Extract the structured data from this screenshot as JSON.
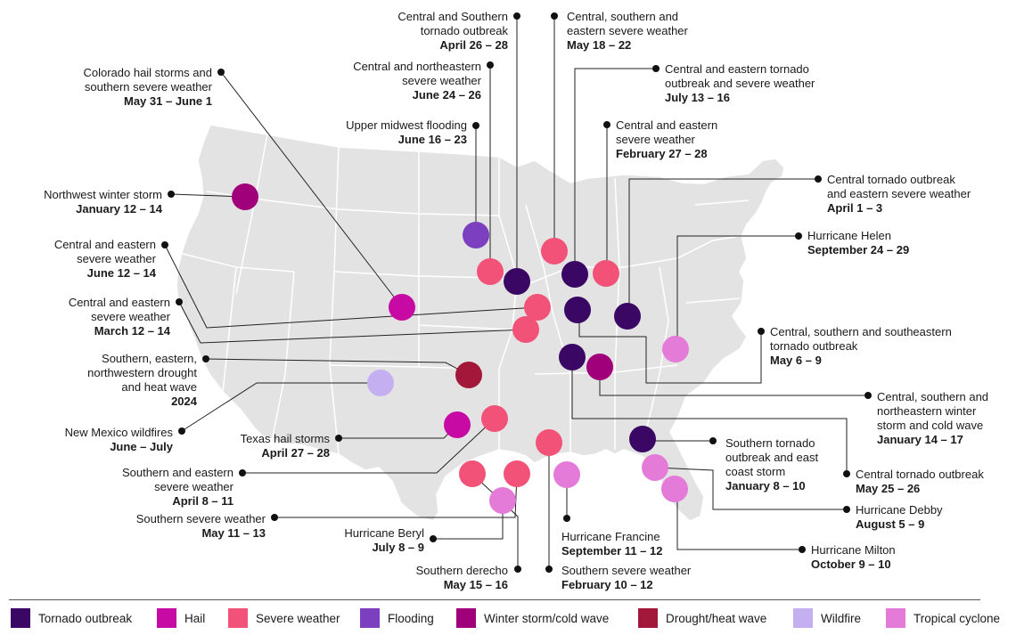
{
  "categories": {
    "tornado": {
      "label": "Tornado outbreak",
      "color": "#3b0764"
    },
    "hail": {
      "label": "Hail",
      "color": "#c80aa5"
    },
    "severe": {
      "label": "Severe weather",
      "color": "#f25278"
    },
    "flooding": {
      "label": "Flooding",
      "color": "#7b3fbf"
    },
    "winter": {
      "label": "Winter storm/cold wave",
      "color": "#a0007a"
    },
    "drought": {
      "label": "Drought/heat wave",
      "color": "#a3183a"
    },
    "wildfire": {
      "label": "Wildfire",
      "color": "#c4b0f0"
    },
    "tropical": {
      "label": "Tropical cyclone",
      "color": "#e57bd8"
    }
  },
  "legend": [
    "tornado",
    "hail",
    "severe",
    "flooding",
    "winter",
    "drought",
    "wildfire",
    "tropical"
  ],
  "events": [
    {
      "name": "Central and Southern\ntornado outbreak",
      "date": "April 26 – 28",
      "category": "tornado"
    },
    {
      "name": "Central, southern and\neastern severe weather",
      "date": "May 18 – 22",
      "category": "severe"
    },
    {
      "name": "Colorado hail storms and\nsouthern severe weather",
      "date": "May 31 – June 1",
      "category": "hail"
    },
    {
      "name": "Central and northeastern\nsevere weather",
      "date": "June 24 – 26",
      "category": "severe"
    },
    {
      "name": "Central and eastern tornado\noutbreak and severe weather",
      "date": "July 13 – 16",
      "category": "tornado"
    },
    {
      "name": "Upper midwest flooding",
      "date": "June 16 – 23",
      "category": "flooding"
    },
    {
      "name": "Central and eastern\nsevere weather",
      "date": "February 27 – 28",
      "category": "severe"
    },
    {
      "name": "Northwest winter storm",
      "date": "January 12 – 14",
      "category": "winter"
    },
    {
      "name": "Central tornado outbreak\nand eastern severe weather",
      "date": "April 1 – 3",
      "category": "tornado"
    },
    {
      "name": "Central and eastern\nsevere weather",
      "date": "June 12 – 14",
      "category": "severe"
    },
    {
      "name": "Hurricane Helen",
      "date": "September 24 – 29",
      "category": "tropical"
    },
    {
      "name": "Central and eastern\nsevere weather",
      "date": "March 12 – 14",
      "category": "severe"
    },
    {
      "name": "Central, southern and southeastern\ntornado outbreak",
      "date": "May 6 – 9",
      "category": "tornado"
    },
    {
      "name": "Southern, eastern,\nnorthwestern drought\nand heat wave",
      "date": "2024",
      "category": "drought"
    },
    {
      "name": "Central, southern and\nnortheastern winter\nstorm and cold wave",
      "date": "January 14 – 17",
      "category": "winter"
    },
    {
      "name": "New Mexico wildfires",
      "date": "June – July",
      "category": "wildfire"
    },
    {
      "name": "Texas hail storms",
      "date": "April 27 – 28",
      "category": "hail"
    },
    {
      "name": "Southern tornado\noutbreak and east\ncoast storm",
      "date": "January 8 – 10",
      "category": "tornado"
    },
    {
      "name": "Central tornado outbreak",
      "date": "May 25 – 26",
      "category": "tornado"
    },
    {
      "name": "Southern and eastern\nsevere weather",
      "date": "April 8 – 11",
      "category": "severe"
    },
    {
      "name": "Hurricane Debby",
      "date": "August 5 – 9",
      "category": "tropical"
    },
    {
      "name": "Southern severe weather",
      "date": "May 11 – 13",
      "category": "severe"
    },
    {
      "name": "Hurricane Francine",
      "date": "September 11 – 12",
      "category": "tropical"
    },
    {
      "name": "Hurricane Beryl",
      "date": "July 8 – 9",
      "category": "tropical"
    },
    {
      "name": "Hurricane Milton",
      "date": "October 9 – 10",
      "category": "tropical"
    },
    {
      "name": "Southern derecho",
      "date": "May 15 – 16",
      "category": "severe"
    },
    {
      "name": "Southern severe weather",
      "date": "February 10 – 12",
      "category": "severe"
    }
  ]
}
